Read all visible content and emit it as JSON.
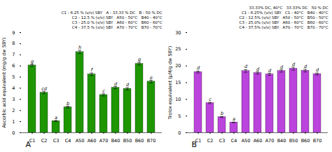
{
  "chart_data": [
    {
      "type": "bar",
      "categories": [
        "C1",
        "C2",
        "C3",
        "C4",
        "A50",
        "A60",
        "A70",
        "B40",
        "B50",
        "B60",
        "B70"
      ],
      "values": [
        6.05,
        3.6,
        1.05,
        2.3,
        7.25,
        5.25,
        3.4,
        4.05,
        3.95,
        6.2,
        4.6
      ],
      "errors": [
        0.1,
        0.1,
        0.05,
        0.08,
        0.15,
        0.12,
        0.1,
        0.1,
        0.1,
        0.12,
        0.12
      ],
      "letters": [
        "g",
        "cd",
        "a",
        "b",
        "h",
        "f",
        "c",
        "d",
        "d",
        "g",
        "e"
      ],
      "color": "#1E9600",
      "y_label": "Ascorbic acid equivalent (mg/g dw SBY)",
      "ylim": [
        0,
        9
      ],
      "yticks": [
        0,
        1,
        2,
        3,
        4,
        5,
        6,
        7,
        8,
        9
      ],
      "panel_label": "A",
      "legend_text": [
        "C1 - 6.25 % (v/v) SBY   A - 33.33 % DC   B - 50 % DC",
        "C2 - 12.5 % (v/v) SBY   A50 - 50°C   B40 - 40°C",
        "C3 - 25.0 % (v/v) SBY   A60 - 60°C   B60 - 60°C",
        "C4 - 37.5 % (v/v) SBY   A70 - 70°C   B70 - 70°C"
      ]
    },
    {
      "type": "bar",
      "categories": [
        "C1",
        "C2",
        "C3",
        "C4",
        "A50",
        "A60",
        "A70",
        "B40",
        "B50",
        "B60",
        "B70"
      ],
      "values": [
        18.2,
        8.9,
        4.7,
        3.1,
        18.5,
        17.9,
        17.5,
        18.5,
        19.2,
        18.6,
        17.6
      ],
      "errors": [
        0.3,
        0.2,
        0.15,
        0.1,
        0.4,
        0.35,
        0.3,
        0.35,
        0.45,
        0.4,
        0.3
      ],
      "letters": [
        "d",
        "c",
        "b",
        "a",
        "d",
        "d",
        "d",
        "d",
        "d",
        "d",
        "d"
      ],
      "color": "#BB44DD",
      "y_label": "Trolox equivalent (μM/g dw SBY)",
      "ylim": [
        0,
        30
      ],
      "yticks": [
        0,
        5,
        10,
        15,
        20,
        25,
        30
      ],
      "panel_label": "B",
      "legend_text": [
        "33.33% DC, 40°C   33.33% DC   50 % DC",
        "C1 - 6.25% (v/v) SBY   C1 - 40°C   B40 - 40°C",
        "C2 - 12.5% (v/v) SBY   A50 - 50°C   B50 - 50°C",
        "C3 - 25.0% (v/v) SBY   A60 - 60°C   B60 - 60°C",
        "C4 - 37.5% (v/v) SBY   A70 - 70°C   B70 - 70°C"
      ]
    }
  ]
}
